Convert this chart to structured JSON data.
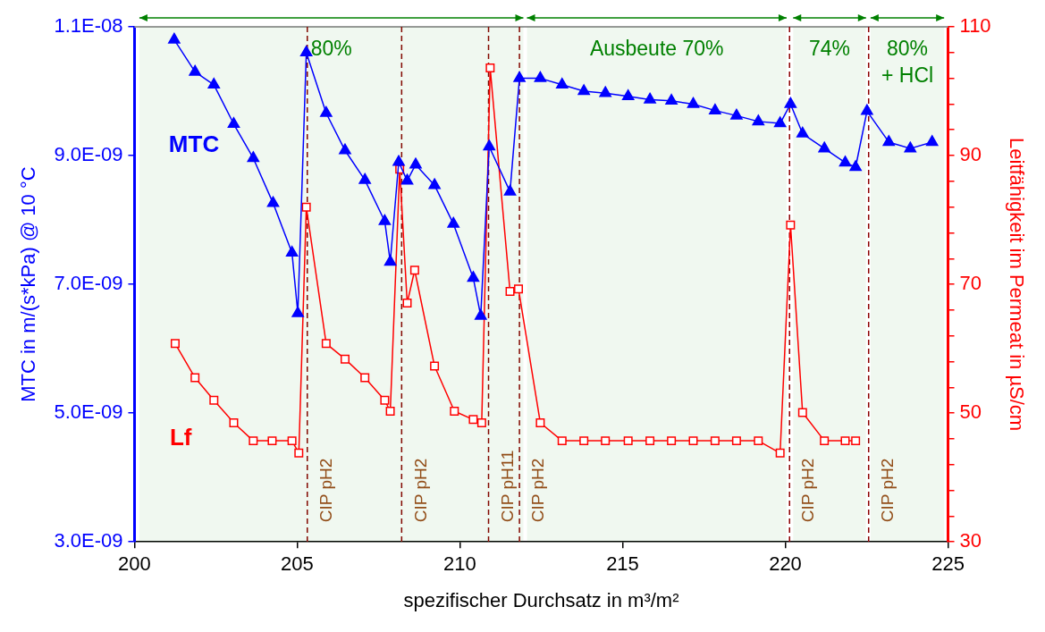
{
  "chart_data": {
    "type": "line",
    "xlabel": "spezifischer Durchsatz in m³/m²",
    "ylabel": "MTC in m/(s*kPa) @ 10 °C",
    "y2label": "Leitfähigkeit im Permeat in µS/cm",
    "xlim": [
      200,
      225
    ],
    "xticks": [
      200,
      205,
      210,
      215,
      220,
      225
    ],
    "ylim": [
      3e-09,
      1.1e-08
    ],
    "yticks": [
      {
        "value": 3e-09,
        "label": "3.0E-09"
      },
      {
        "value": 5e-09,
        "label": "5.0E-09"
      },
      {
        "value": 7e-09,
        "label": "7.0E-09"
      },
      {
        "value": 9e-09,
        "label": "9.0E-09"
      },
      {
        "value": 1.1e-08,
        "label": "1.1E-08"
      }
    ],
    "y2lim": [
      30,
      110
    ],
    "y2ticks": [
      30,
      {
        "value": 34,
        "label": null
      },
      {
        "value": 38,
        "label": null
      },
      {
        "value": 42,
        "label": null
      },
      {
        "value": 46,
        "label": null
      },
      50,
      {
        "value": 54,
        "label": null
      },
      {
        "value": 58,
        "label": null
      },
      {
        "value": 62,
        "label": null
      },
      {
        "value": 66,
        "label": null
      },
      70,
      {
        "value": 74,
        "label": null
      },
      {
        "value": 78,
        "label": null
      },
      {
        "value": 82,
        "label": null
      },
      {
        "value": 86,
        "label": null
      },
      90,
      {
        "value": 94,
        "label": null
      },
      {
        "value": 98,
        "label": null
      },
      {
        "value": 102,
        "label": null
      },
      {
        "value": 106,
        "label": null
      },
      110
    ],
    "grid": false,
    "legend": false,
    "line_style": "solid",
    "series": [
      {
        "name": "MTC",
        "color": "#0000ff",
        "marker": "triangle",
        "x": [
          201.22,
          201.86,
          202.44,
          203.05,
          203.65,
          204.26,
          204.84,
          205.02,
          205.28,
          205.89,
          206.47,
          207.08,
          207.69,
          207.86,
          208.12,
          208.38,
          208.64,
          209.22,
          209.8,
          210.41,
          210.64,
          210.9,
          211.54,
          211.83,
          212.47,
          213.14,
          213.81,
          214.47,
          215.17,
          215.84,
          216.5,
          217.17,
          217.84,
          218.5,
          219.17,
          219.84,
          220.16,
          220.53,
          221.2,
          221.84,
          222.16,
          222.51,
          223.18,
          223.84,
          224.51
        ],
        "values": [
          1.08e-08,
          1.03e-08,
          1.01e-08,
          9.49e-09,
          8.96e-09,
          8.26e-09,
          7.49e-09,
          6.55e-09,
          1.06e-08,
          9.66e-09,
          9.08e-09,
          8.62e-09,
          7.98e-09,
          7.35e-09,
          8.9e-09,
          8.61e-09,
          8.86e-09,
          8.54e-09,
          7.94e-09,
          7.1e-09,
          6.51e-09,
          9.14e-09,
          8.44e-09,
          1.02e-08,
          1.02e-08,
          1.01e-08,
          1e-08,
          9.97e-09,
          9.92e-09,
          9.87e-09,
          9.85e-09,
          9.8e-09,
          9.7e-09,
          9.62e-09,
          9.53e-09,
          9.5e-09,
          9.8e-09,
          9.34e-09,
          9.11e-09,
          8.89e-09,
          8.82e-09,
          9.69e-09,
          9.21e-09,
          9.11e-09,
          9.21e-09
        ]
      },
      {
        "name": "Lf",
        "color": "#ff0000",
        "marker": "square",
        "axis": "y2",
        "x": [
          201.25,
          201.86,
          202.44,
          203.05,
          203.65,
          204.23,
          204.84,
          205.05,
          205.28,
          205.89,
          206.47,
          207.08,
          207.69,
          207.86,
          208.15,
          208.38,
          208.61,
          209.22,
          209.83,
          210.41,
          210.67,
          210.93,
          211.54,
          211.8,
          212.47,
          213.14,
          213.81,
          214.47,
          215.17,
          215.84,
          216.5,
          217.17,
          217.84,
          218.5,
          219.17,
          219.84,
          220.16,
          220.53,
          221.2,
          221.84,
          222.16
        ],
        "values": [
          60.8,
          55.5,
          52,
          48.5,
          45.7,
          45.7,
          45.7,
          43.8,
          82,
          60.8,
          58.4,
          55.5,
          52,
          50.3,
          87.9,
          67.1,
          72.2,
          57.3,
          50.3,
          49,
          48.5,
          103.6,
          68.9,
          69.3,
          48.5,
          45.7,
          45.7,
          45.7,
          45.7,
          45.7,
          45.7,
          45.7,
          45.7,
          45.7,
          45.7,
          43.8,
          79.2,
          50.1,
          45.7,
          45.7,
          45.7
        ]
      }
    ],
    "ref_lines": [
      {
        "axis": "x",
        "value": 205.31,
        "label": "CIP pH2",
        "color": "#8b0000",
        "line_style": "dashed"
      },
      {
        "axis": "x",
        "value": 208.21,
        "label": "CIP pH2",
        "color": "#8b0000",
        "line_style": "dashed"
      },
      {
        "axis": "x",
        "value": 210.88,
        "label": "CIP pH11",
        "color": "#8b0000",
        "line_style": "dashed"
      },
      {
        "axis": "x",
        "value": 211.83,
        "label": "CIP pH2",
        "color": "#8b0000",
        "line_style": "dashed"
      },
      {
        "axis": "x",
        "value": 220.13,
        "label": "CIP pH2",
        "color": "#8b0000",
        "line_style": "dashed"
      },
      {
        "axis": "x",
        "value": 222.56,
        "label": "CIP pH2",
        "color": "#8b0000",
        "line_style": "dashed"
      }
    ],
    "bands": [
      {
        "axis": "x",
        "from": 200.15,
        "to": 211.95,
        "label": "80%",
        "color": "#008000"
      },
      {
        "axis": "x",
        "from": 212.06,
        "to": 220.04,
        "label": "Ausbeute 70%",
        "color": "#008000"
      },
      {
        "axis": "x",
        "from": 220.24,
        "to": 222.48,
        "label": "74%",
        "color": "#008000"
      },
      {
        "axis": "x",
        "from": 222.62,
        "to": 224.88,
        "label": "80%\n+ HCl",
        "color": "#008000"
      }
    ]
  }
}
